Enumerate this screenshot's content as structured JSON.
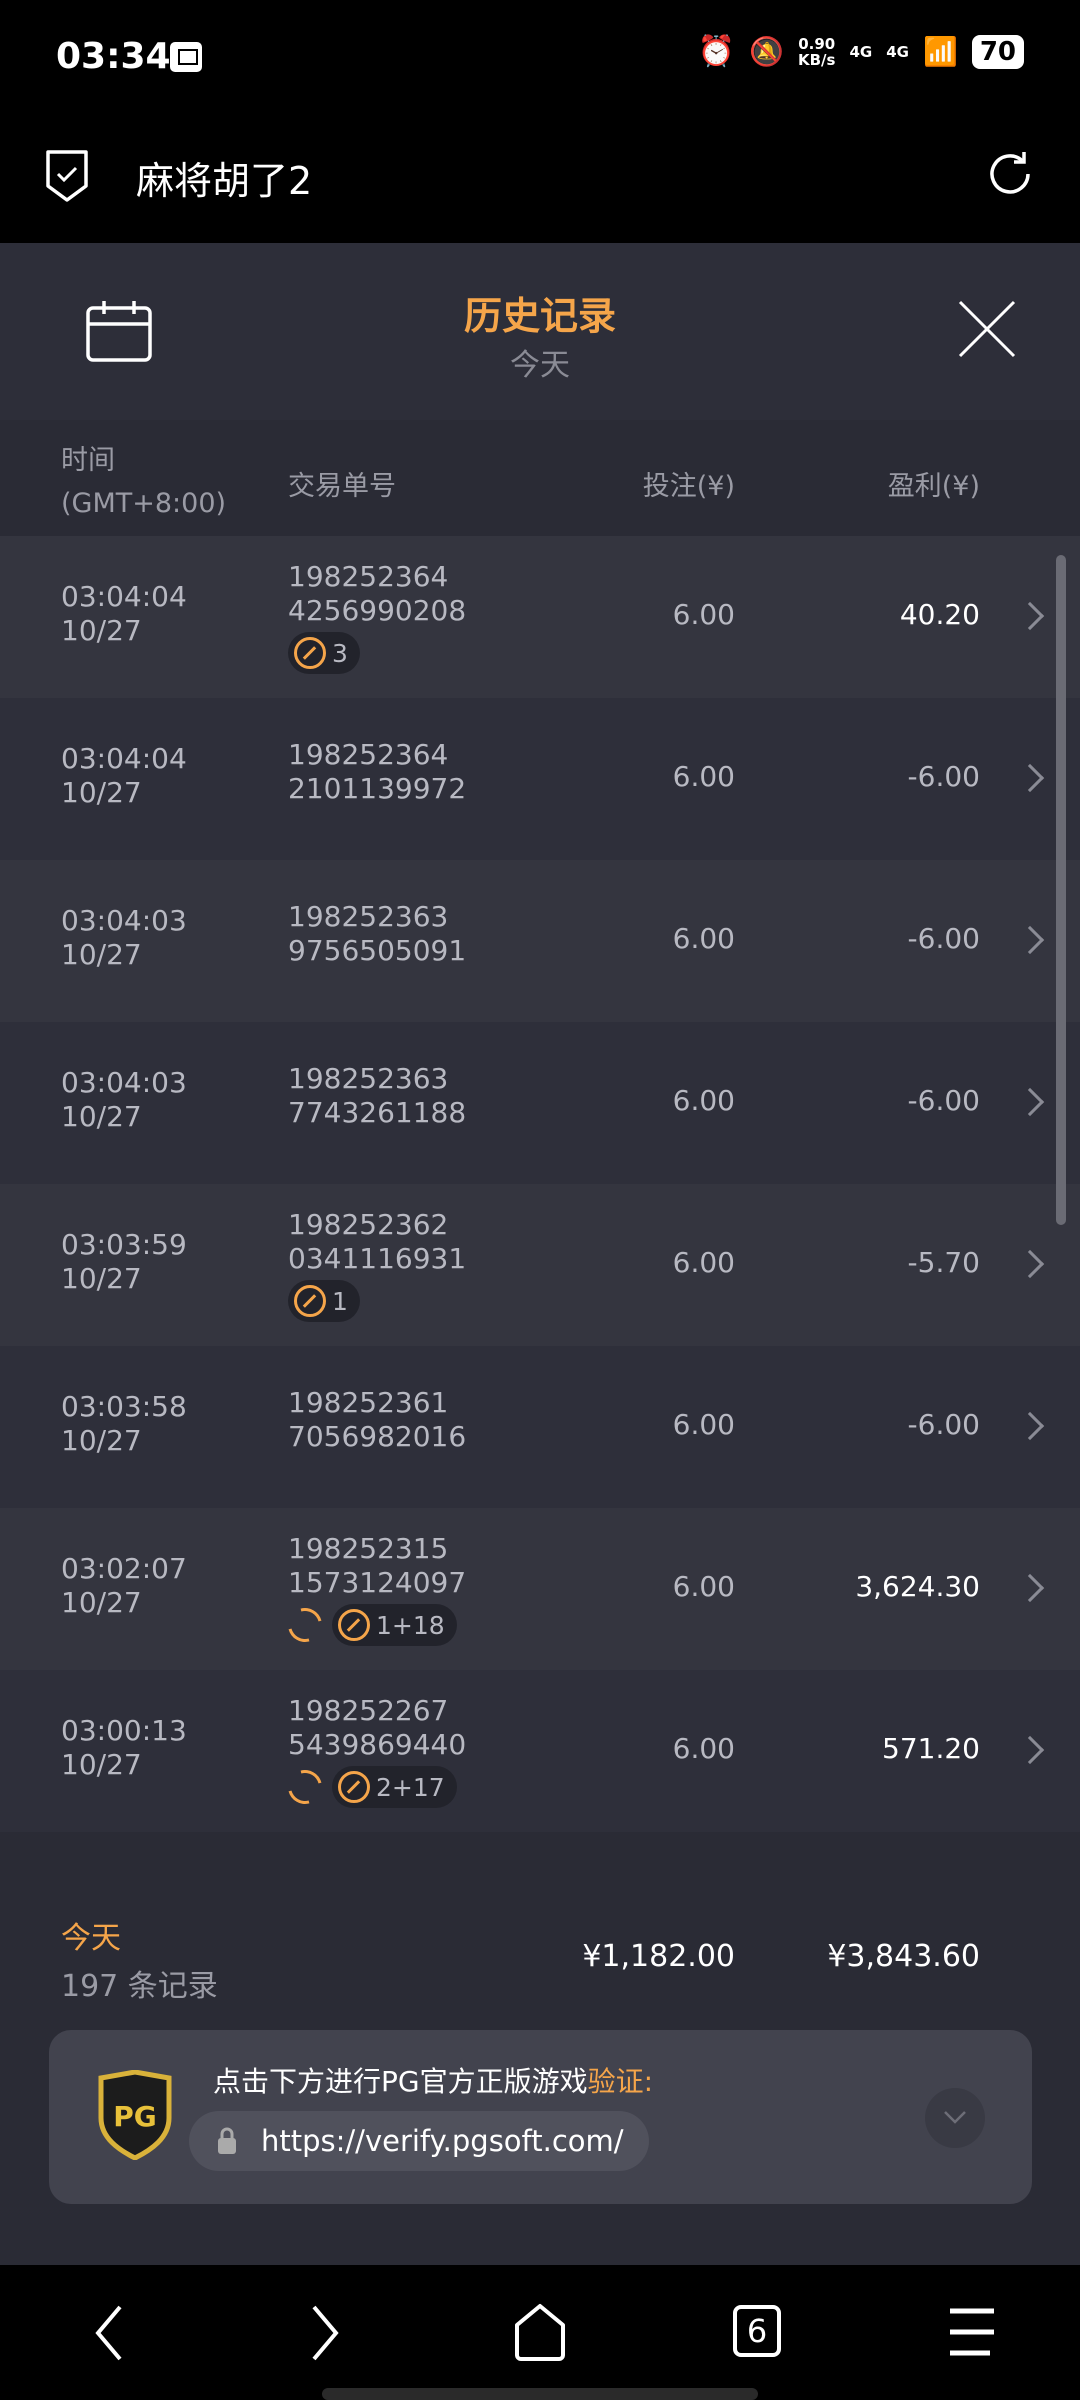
{
  "status_bar": {
    "time": "03:34",
    "net_speed": "0.90",
    "net_unit": "KB/s",
    "sim1": "4G",
    "sim2": "4G",
    "battery": "70"
  },
  "app_bar": {
    "title": "麻将胡了2"
  },
  "header": {
    "title": "历史记录",
    "subtitle": "今天"
  },
  "columns": {
    "time": "时间",
    "time_zone": "(GMT+8:00)",
    "id": "交易单号",
    "bet": "投注(¥)",
    "profit": "盈利(¥)"
  },
  "rows": [
    {
      "time": "03:04:04",
      "date": "10/27",
      "id1": "198252364",
      "id2": "4256990208",
      "bet": "6.00",
      "profit": "40.20",
      "respin": false,
      "badge": "3"
    },
    {
      "time": "03:04:04",
      "date": "10/27",
      "id1": "198252364",
      "id2": "2101139972",
      "bet": "6.00",
      "profit": "-6.00",
      "respin": false,
      "badge": null
    },
    {
      "time": "03:04:03",
      "date": "10/27",
      "id1": "198252363",
      "id2": "9756505091",
      "bet": "6.00",
      "profit": "-6.00",
      "respin": false,
      "badge": null
    },
    {
      "time": "03:04:03",
      "date": "10/27",
      "id1": "198252363",
      "id2": "7743261188",
      "bet": "6.00",
      "profit": "-6.00",
      "respin": false,
      "badge": null
    },
    {
      "time": "03:03:59",
      "date": "10/27",
      "id1": "198252362",
      "id2": "0341116931",
      "bet": "6.00",
      "profit": "-5.70",
      "respin": false,
      "badge": "1"
    },
    {
      "time": "03:03:58",
      "date": "10/27",
      "id1": "198252361",
      "id2": "7056982016",
      "bet": "6.00",
      "profit": "-6.00",
      "respin": false,
      "badge": null
    },
    {
      "time": "03:02:07",
      "date": "10/27",
      "id1": "198252315",
      "id2": "1573124097",
      "bet": "6.00",
      "profit": "3,624.30",
      "respin": true,
      "badge": "1+18"
    },
    {
      "time": "03:00:13",
      "date": "10/27",
      "id1": "198252267",
      "id2": "5439869440",
      "bet": "6.00",
      "profit": "571.20",
      "respin": true,
      "badge": "2+17"
    }
  ],
  "summary": {
    "label": "今天",
    "count": "197 条记录",
    "total_bet": "¥1,182.00",
    "total_profit": "¥3,843.60"
  },
  "verify": {
    "logo": "PG",
    "text": "点击下方进行PG官方正版游戏",
    "highlight": "验证",
    "colon": ":",
    "url": "https://verify.pgsoft.com/"
  },
  "nav": {
    "tabs_count": "6"
  },
  "colors": {
    "accent": "#f5a54a",
    "background": "#2a2b35"
  }
}
